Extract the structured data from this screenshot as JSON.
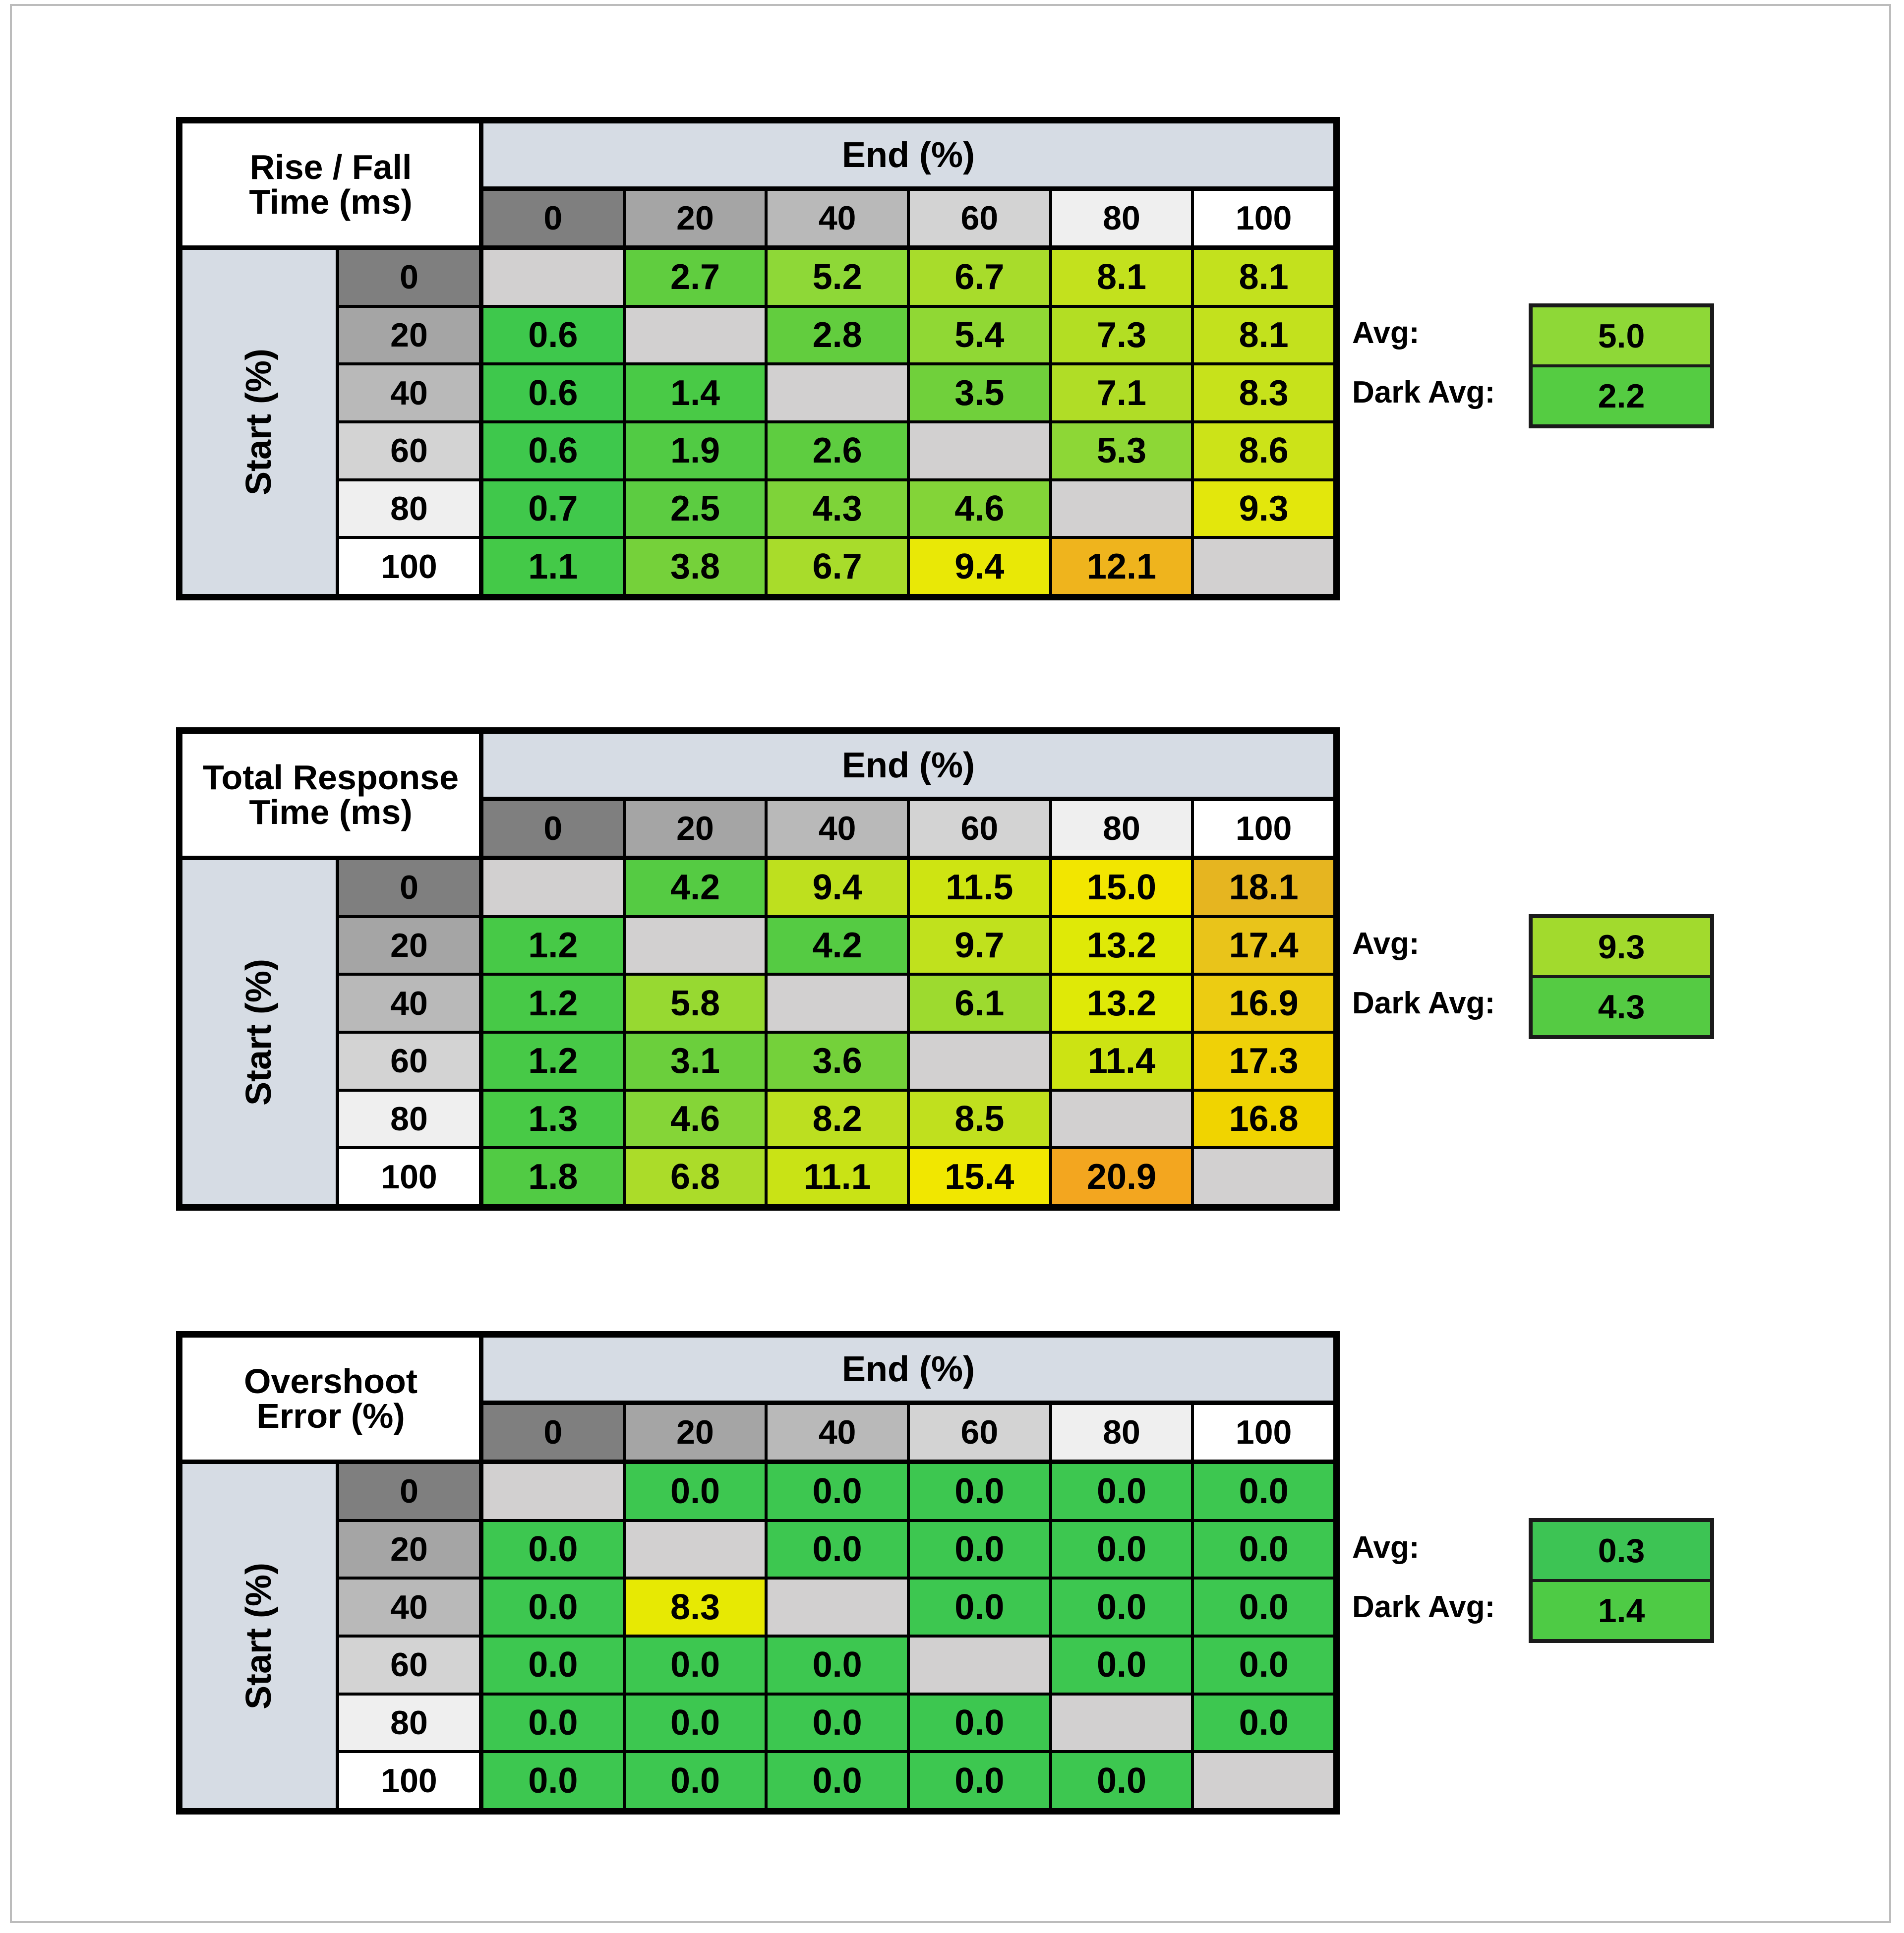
{
  "palette": {
    "level_shades": [
      "#7F7F7F",
      "#A5A5A5",
      "#B9B9B9",
      "#D3D3D3",
      "#EFEFEF",
      "#FFFFFF"
    ],
    "diagonal_cell": "#D2D0D0",
    "axis_band": "#D6DCE4",
    "grid_line": "#000000"
  },
  "chart_data": [
    {
      "type": "heatmap",
      "title": [
        "Rise / Fall",
        "Time (ms)"
      ],
      "col_axis": "End (%)",
      "row_axis": "Start (%)",
      "columns": [
        "0",
        "20",
        "40",
        "60",
        "80",
        "100"
      ],
      "rows": [
        "0",
        "20",
        "40",
        "60",
        "80",
        "100"
      ],
      "values": [
        [
          null,
          "2.7",
          "5.2",
          "6.7",
          "8.1",
          "8.1"
        ],
        [
          "0.6",
          null,
          "2.8",
          "5.4",
          "7.3",
          "8.1"
        ],
        [
          "0.6",
          "1.4",
          null,
          "3.5",
          "7.1",
          "8.3"
        ],
        [
          "0.6",
          "1.9",
          "2.6",
          null,
          "5.3",
          "8.6"
        ],
        [
          "0.7",
          "2.5",
          "4.3",
          "4.6",
          null,
          "9.3"
        ],
        [
          "1.1",
          "3.8",
          "6.7",
          "9.4",
          "12.1",
          null
        ]
      ],
      "cell_colors": [
        [
          null,
          "#60CD3F",
          "#8ED837",
          "#A8DC2B",
          "#C3E11D",
          "#C3E11D"
        ],
        [
          "#3EC84C",
          null,
          "#62CD3E",
          "#90D834",
          "#B3DE23",
          "#C3E11D"
        ],
        [
          "#3EC84C",
          "#49CA46",
          null,
          "#70D03B",
          "#B0DD26",
          "#C7E21B"
        ],
        [
          "#3EC84C",
          "#51CB44",
          "#5ECD40",
          null,
          "#8DD736",
          "#CCE318"
        ],
        [
          "#40C84B",
          "#5CCC41",
          "#7ED339",
          "#83D438",
          null,
          "#E3E70C"
        ],
        [
          "#44C948",
          "#75D13A",
          "#A8DC2B",
          "#E9E806",
          "#EFB41D",
          null
        ]
      ],
      "avg": {
        "label": "Avg:",
        "value": "5.0",
        "color": "#8ED837"
      },
      "dark_avg": {
        "label": "Dark Avg:",
        "value": "2.2",
        "color": "#55CC42"
      }
    },
    {
      "type": "heatmap",
      "title": [
        "Total Response",
        "Time (ms)"
      ],
      "col_axis": "End (%)",
      "row_axis": "Start (%)",
      "columns": [
        "0",
        "20",
        "40",
        "60",
        "80",
        "100"
      ],
      "rows": [
        "0",
        "20",
        "40",
        "60",
        "80",
        "100"
      ],
      "values": [
        [
          null,
          "4.2",
          "9.4",
          "11.5",
          "15.0",
          "18.1"
        ],
        [
          "1.2",
          null,
          "4.2",
          "9.7",
          "13.2",
          "17.4"
        ],
        [
          "1.2",
          "5.8",
          null,
          "6.1",
          "13.2",
          "16.9"
        ],
        [
          "1.2",
          "3.1",
          "3.6",
          null,
          "11.4",
          "17.3"
        ],
        [
          "1.3",
          "4.6",
          "8.2",
          "8.5",
          null,
          "16.8"
        ],
        [
          "1.8",
          "6.8",
          "11.1",
          "15.4",
          "20.9",
          null
        ]
      ],
      "cell_colors": [
        [
          null,
          "#55CB43",
          "#BEE01E",
          "#CEE412",
          "#F2E600",
          "#E6B520"
        ],
        [
          "#47C947",
          null,
          "#55CB43",
          "#C0E11D",
          "#DFE907",
          "#E9C41A"
        ],
        [
          "#47C947",
          "#97D931",
          null,
          "#9DDA2F",
          "#DFE907",
          "#ECCC12"
        ],
        [
          "#47C947",
          "#6BCF3C",
          "#74D13A",
          null,
          "#CCE313",
          "#EFD107"
        ],
        [
          "#48CA46",
          "#85D537",
          "#BCDF20",
          "#C0E01E",
          null,
          "#F0D400"
        ],
        [
          "#51CB44",
          "#ABDC29",
          "#C9E315",
          "#F1E700",
          "#F3A61F",
          null
        ]
      ],
      "avg": {
        "label": "Avg:",
        "value": "9.3",
        "color": "#A2DA2D"
      },
      "dark_avg": {
        "label": "Dark Avg:",
        "value": "4.3",
        "color": "#55CB43"
      }
    },
    {
      "type": "heatmap",
      "title": [
        "Overshoot",
        "Error (%)"
      ],
      "col_axis": "End (%)",
      "row_axis": "Start (%)",
      "columns": [
        "0",
        "20",
        "40",
        "60",
        "80",
        "100"
      ],
      "rows": [
        "0",
        "20",
        "40",
        "60",
        "80",
        "100"
      ],
      "values": [
        [
          null,
          "0.0",
          "0.0",
          "0.0",
          "0.0",
          "0.0"
        ],
        [
          "0.0",
          null,
          "0.0",
          "0.0",
          "0.0",
          "0.0"
        ],
        [
          "0.0",
          "8.3",
          null,
          "0.0",
          "0.0",
          "0.0"
        ],
        [
          "0.0",
          "0.0",
          "0.0",
          null,
          "0.0",
          "0.0"
        ],
        [
          "0.0",
          "0.0",
          "0.0",
          "0.0",
          null,
          "0.0"
        ],
        [
          "0.0",
          "0.0",
          "0.0",
          "0.0",
          "0.0",
          null
        ]
      ],
      "cell_colors": [
        [
          null,
          "#3DC750",
          "#3DC750",
          "#3DC750",
          "#3DC750",
          "#3DC750"
        ],
        [
          "#3DC750",
          null,
          "#3DC750",
          "#3DC750",
          "#3DC750",
          "#3DC750"
        ],
        [
          "#3DC750",
          "#E7E903",
          null,
          "#3DC750",
          "#3DC750",
          "#3DC750"
        ],
        [
          "#3DC750",
          "#3DC750",
          "#3DC750",
          null,
          "#3DC750",
          "#3DC750"
        ],
        [
          "#3DC750",
          "#3DC750",
          "#3DC750",
          "#3DC750",
          null,
          "#3DC750"
        ],
        [
          "#3DC750",
          "#3DC750",
          "#3DC750",
          "#3DC750",
          "#3DC750",
          null
        ]
      ],
      "avg": {
        "label": "Avg:",
        "value": "0.3",
        "color": "#3DC454"
      },
      "dark_avg": {
        "label": "Dark Avg:",
        "value": "1.4",
        "color": "#4ECB45"
      }
    }
  ]
}
